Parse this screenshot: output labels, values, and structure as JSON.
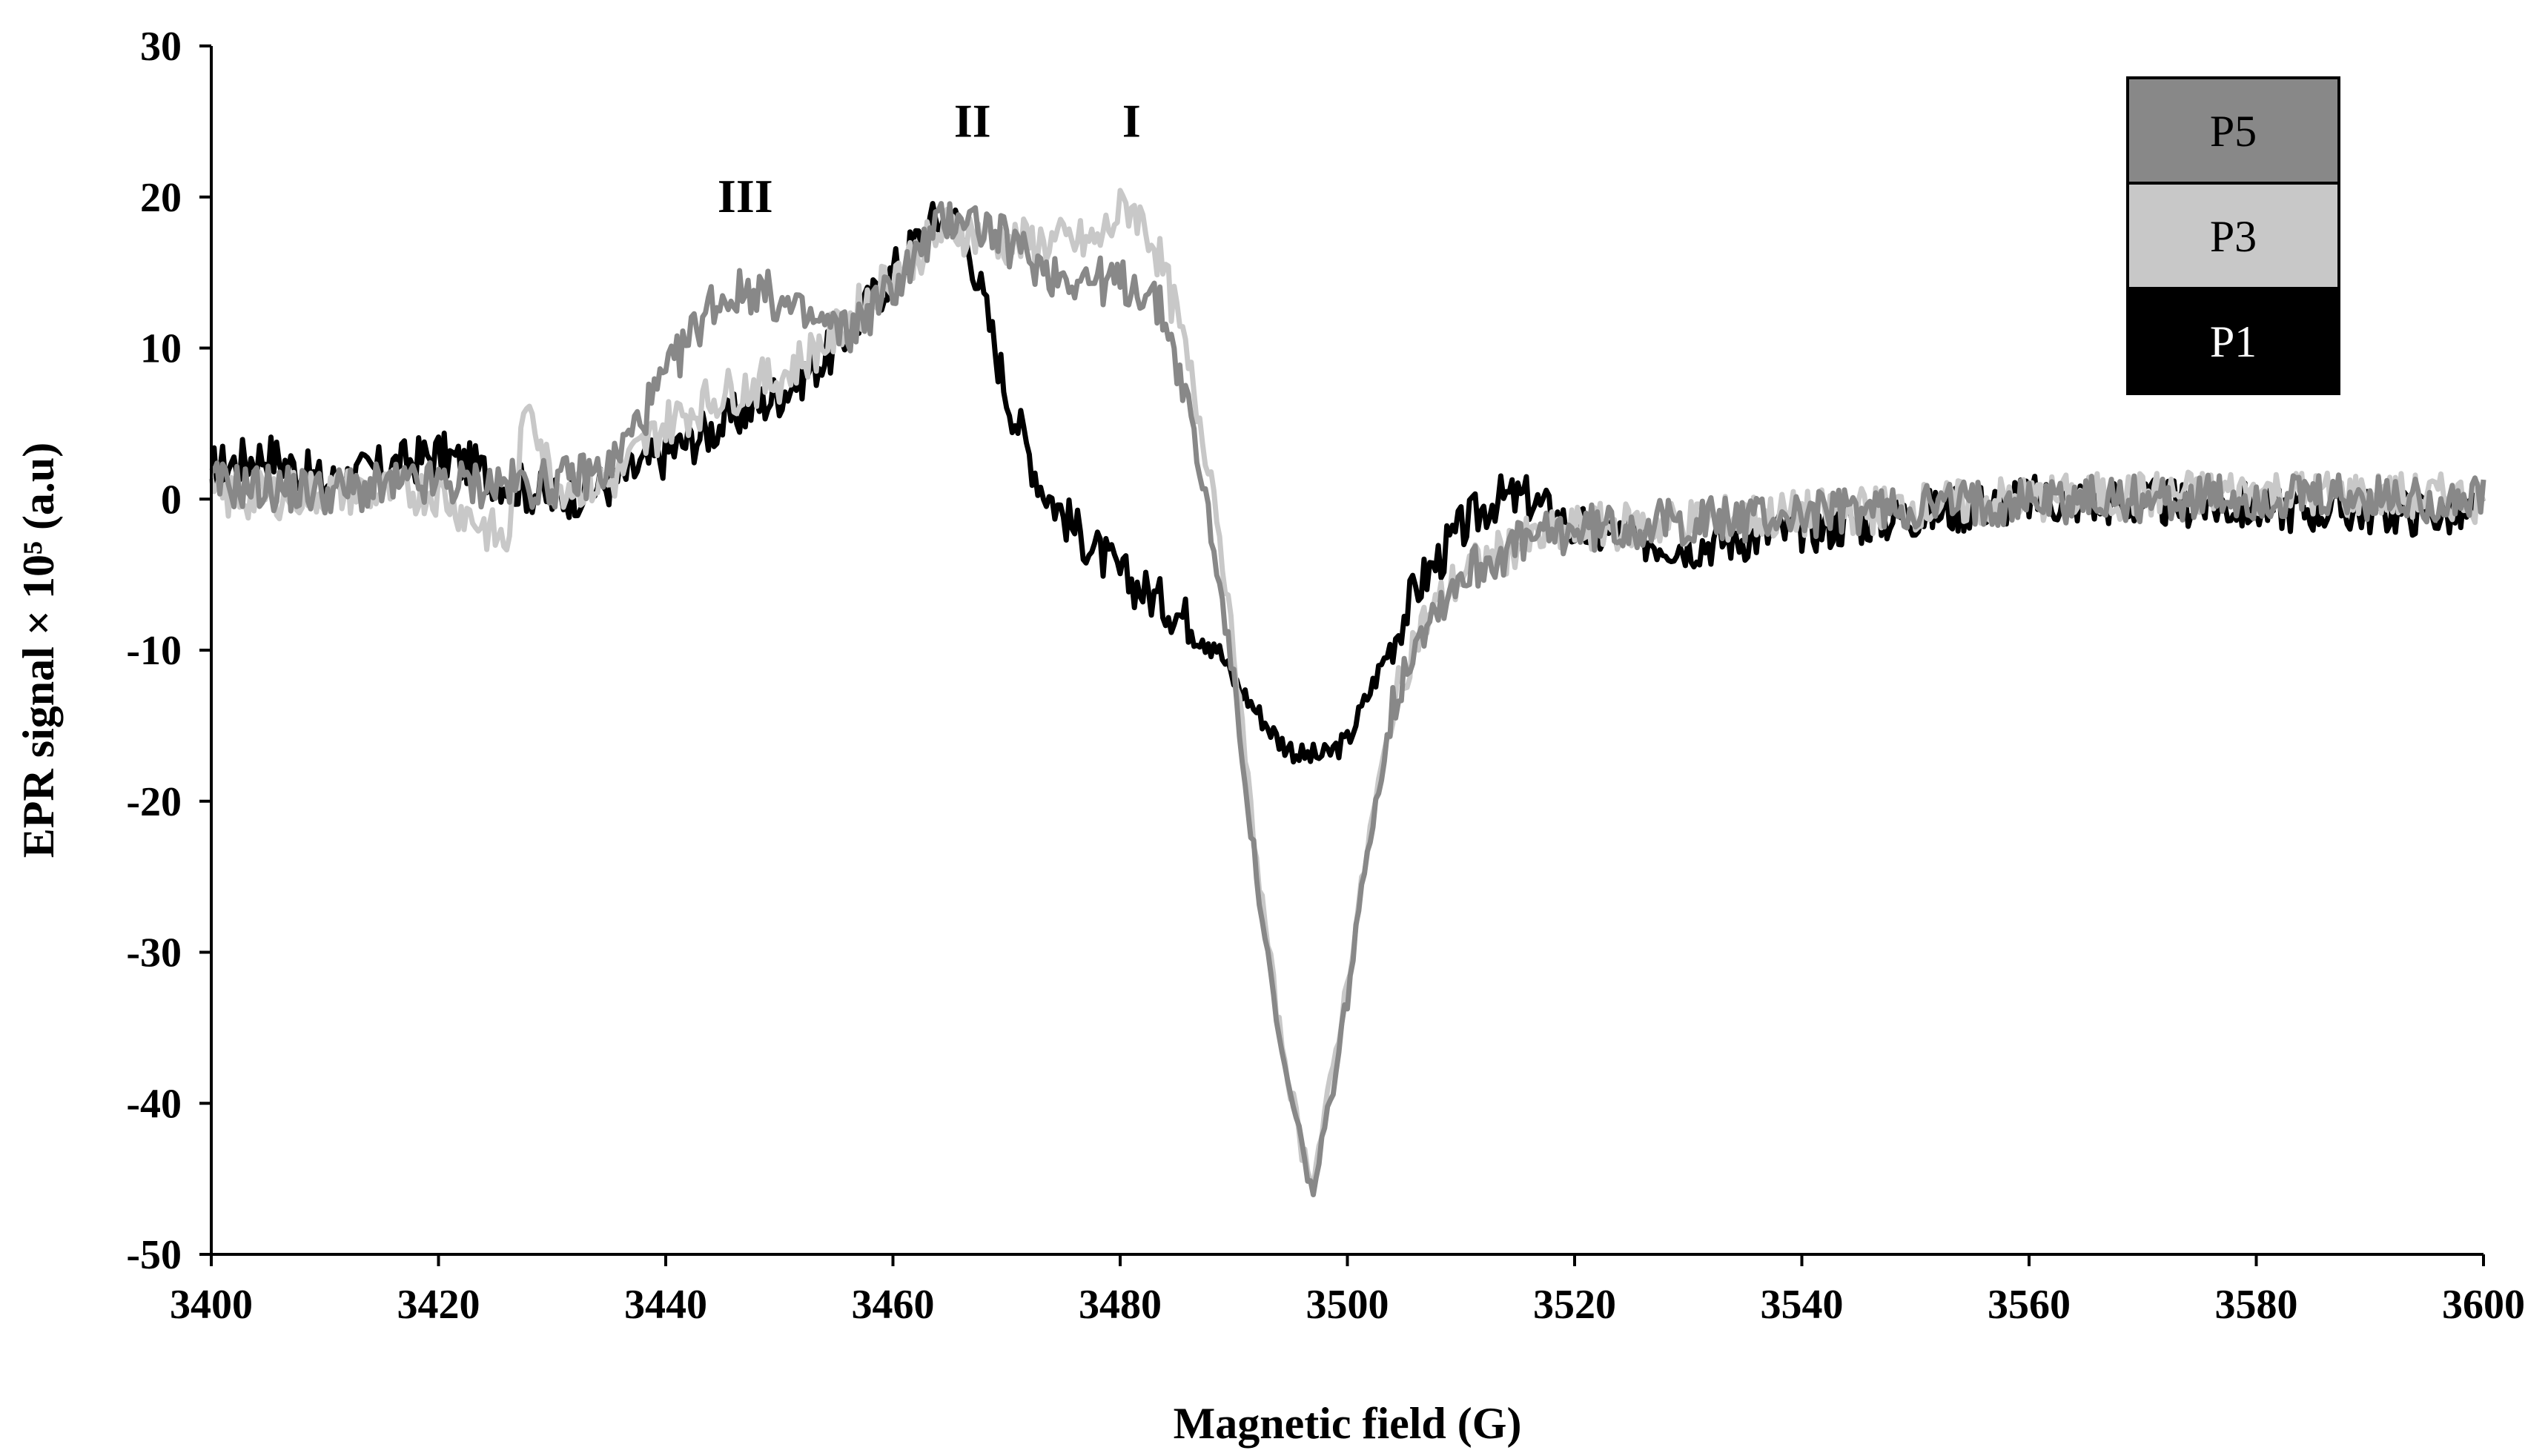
{
  "chart_data": {
    "type": "line",
    "xlabel": "Magnetic field (G)",
    "ylabel": "EPR signal × 10⁵ (a.u)",
    "xlim": [
      3400,
      3600
    ],
    "ylim": [
      -50,
      30
    ],
    "x_ticks": [
      "3400",
      "3420",
      "3440",
      "3460",
      "3480",
      "3500",
      "3520",
      "3540",
      "3560",
      "3580",
      "3600"
    ],
    "y_ticks": [
      "30",
      "20",
      "10",
      "0",
      "-10",
      "-20",
      "-30",
      "-40",
      "-50"
    ],
    "grid": false,
    "legend_position": "top-right",
    "annotations": [
      {
        "text": "III",
        "x": 3447,
        "y": 19
      },
      {
        "text": "II",
        "x": 3467,
        "y": 24
      },
      {
        "text": "I",
        "x": 3481,
        "y": 24
      }
    ],
    "series": [
      {
        "name": "P5",
        "color": "#888888",
        "x": [
          3400,
          3410,
          3420,
          3430,
          3435,
          3440,
          3444,
          3448,
          3452,
          3456,
          3460,
          3464,
          3466,
          3470,
          3474,
          3478,
          3482,
          3484,
          3486,
          3488,
          3490,
          3492,
          3494,
          3496,
          3497,
          3498,
          3500,
          3502,
          3504,
          3506,
          3510,
          3515,
          3520,
          3530,
          3540,
          3560,
          3580,
          3600
        ],
        "y": [
          1,
          0.5,
          1,
          1,
          2,
          8,
          13,
          14,
          12,
          11,
          14,
          18,
          19,
          17,
          15,
          14.5,
          14,
          12,
          6,
          -2,
          -12,
          -25,
          -36,
          -43,
          -46,
          -42,
          -33,
          -22,
          -14,
          -9,
          -5,
          -3,
          -2,
          -1.5,
          -1,
          0,
          0,
          0
        ]
      },
      {
        "name": "P3",
        "color": "#c8c8c8",
        "x": [
          3400,
          3410,
          3420,
          3426,
          3428,
          3430,
          3435,
          3440,
          3445,
          3450,
          3455,
          3460,
          3465,
          3470,
          3475,
          3478,
          3480,
          3481,
          3483,
          3485,
          3488,
          3490,
          3492,
          3494,
          3496,
          3497,
          3498,
          3500,
          3502,
          3504,
          3506,
          3510,
          3515,
          3520,
          3530,
          3540,
          3560,
          3580,
          3600
        ],
        "y": [
          0,
          0.5,
          0.5,
          -3,
          7,
          1,
          1,
          5,
          7,
          8,
          11,
          15,
          18,
          17,
          17,
          17,
          19,
          19.5,
          17,
          12,
          2,
          -10,
          -24,
          -35,
          -43,
          -45,
          -41,
          -32,
          -22,
          -14,
          -9,
          -5,
          -3,
          -2,
          -1.5,
          -1,
          0,
          0.5,
          0
        ]
      },
      {
        "name": "P1",
        "color": "#000000",
        "x": [
          3400,
          3405,
          3410,
          3420,
          3430,
          3435,
          3440,
          3445,
          3450,
          3455,
          3460,
          3463,
          3465,
          3467,
          3470,
          3473,
          3476,
          3480,
          3484,
          3488,
          3490,
          3492,
          3494,
          3496,
          3498,
          3500,
          3503,
          3506,
          3510,
          3513,
          3516,
          3520,
          3530,
          3540,
          3560,
          3580,
          3600
        ],
        "y": [
          2,
          3,
          1,
          3,
          0,
          1,
          3,
          5,
          7,
          10,
          15,
          18,
          19,
          16,
          7,
          1,
          -2,
          -5,
          -7,
          -9,
          -12,
          -14,
          -16,
          -17,
          -17,
          -16,
          -11,
          -6,
          -2,
          0,
          0,
          -2,
          -3,
          -2,
          0,
          -0.5,
          -1
        ]
      }
    ]
  }
}
